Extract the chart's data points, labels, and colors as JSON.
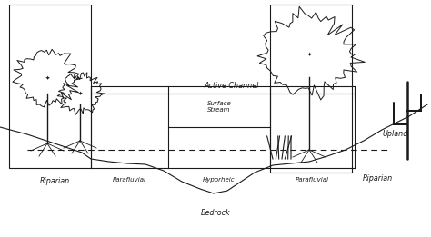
{
  "bg_color": "#ffffff",
  "line_color": "#1a1a1a",
  "labels": {
    "active_channel": "Active Channel",
    "surface_stream": "Surface\nStream",
    "riparian_left": "Riparian",
    "riparian_right": "Riparian",
    "parafluvial_left": "Parafluvial",
    "parafluvial_right": "Parafluvial",
    "hyporheic": "Hyporheic",
    "bedrock": "Bedrock",
    "upland": "Upland"
  },
  "fig_width": 4.74,
  "fig_height": 2.61,
  "dpi": 100
}
